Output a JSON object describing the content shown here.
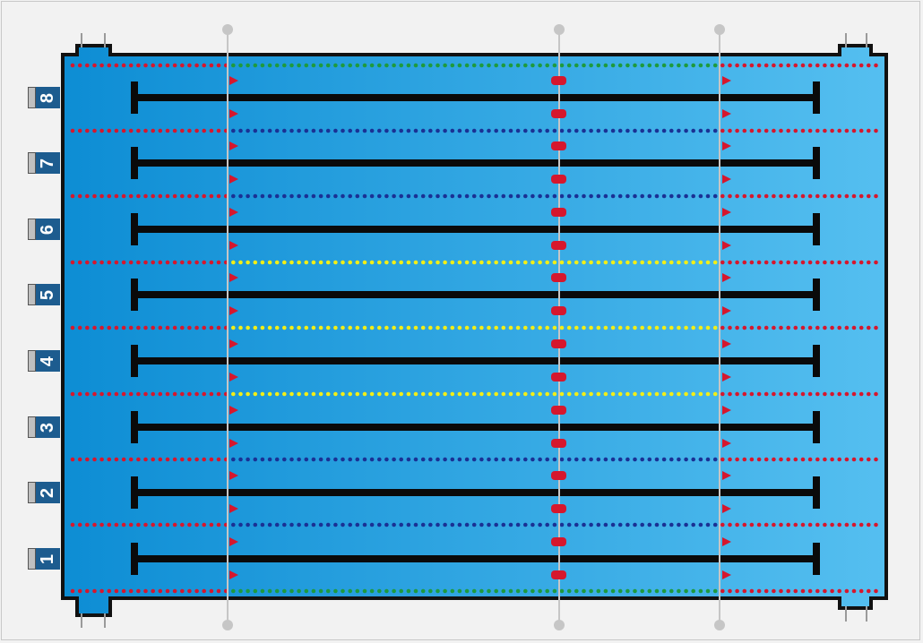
{
  "title": "",
  "lanes": [
    {
      "number": "8"
    },
    {
      "number": "7"
    },
    {
      "number": "6"
    },
    {
      "number": "5"
    },
    {
      "number": "4"
    },
    {
      "number": "3"
    },
    {
      "number": "2"
    },
    {
      "number": "1"
    }
  ],
  "lane_rope_colors": [
    {
      "end": "red",
      "middle": "green"
    },
    {
      "end": "red",
      "middle": "navy"
    },
    {
      "end": "red",
      "middle": "navy"
    },
    {
      "end": "red",
      "middle": "yellow"
    },
    {
      "end": "red",
      "middle": "yellow"
    },
    {
      "end": "red",
      "middle": "yellow"
    },
    {
      "end": "red",
      "middle": "navy"
    },
    {
      "end": "red",
      "middle": "navy"
    },
    {
      "end": "red",
      "middle": "green"
    }
  ],
  "colors": {
    "water_dark": "#0d8dd4",
    "water_light": "#55bff0",
    "lane_line": "#0a0a0a",
    "red": "#d6172d",
    "green": "#1e9a3e",
    "navy": "#1a3194",
    "yellow": "#f2ee17",
    "marker_line": "#c6c6c6",
    "start_block": "#1d5c8f"
  },
  "icons": {
    "backstroke_flag": "triangle-flag-icon",
    "midpool_marker": "rounded-float-icon",
    "line_anchor": "circle-post-icon"
  }
}
